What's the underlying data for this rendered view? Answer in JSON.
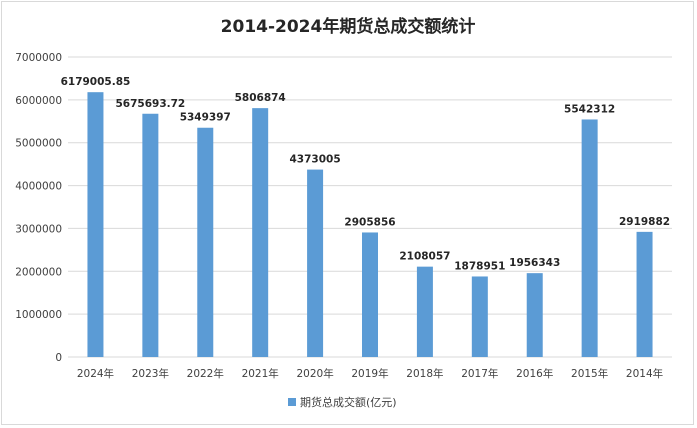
{
  "chart_data": {
    "type": "bar",
    "title": "2014-2024年期货总成交额统计",
    "categories": [
      "2024年",
      "2023年",
      "2022年",
      "2021年",
      "2020年",
      "2019年",
      "2018年",
      "2017年",
      "2016年",
      "2015年",
      "2014年"
    ],
    "series": [
      {
        "name": "期货总成交额(亿元)",
        "values": [
          6179005.85,
          5675693.72,
          5349397,
          5806874,
          4373005,
          2905856,
          2108057,
          1878951,
          1956343,
          5542312,
          2919882
        ],
        "labels": [
          "6179005.85",
          "5675693.72",
          "5349397",
          "5806874",
          "4373005",
          "2905856",
          "2108057",
          "1878951",
          "1956343",
          "5542312",
          "2919882"
        ]
      }
    ],
    "ylim": [
      0,
      7000000
    ],
    "yticks": [
      "0",
      "1000000",
      "2000000",
      "3000000",
      "4000000",
      "5000000",
      "6000000",
      "7000000"
    ],
    "xlabel": "",
    "ylabel": "",
    "grid": true,
    "legend": "bottom",
    "colors": {
      "bar": "#5b9bd5",
      "grid": "#d9d9d9",
      "text": "#404040"
    }
  }
}
